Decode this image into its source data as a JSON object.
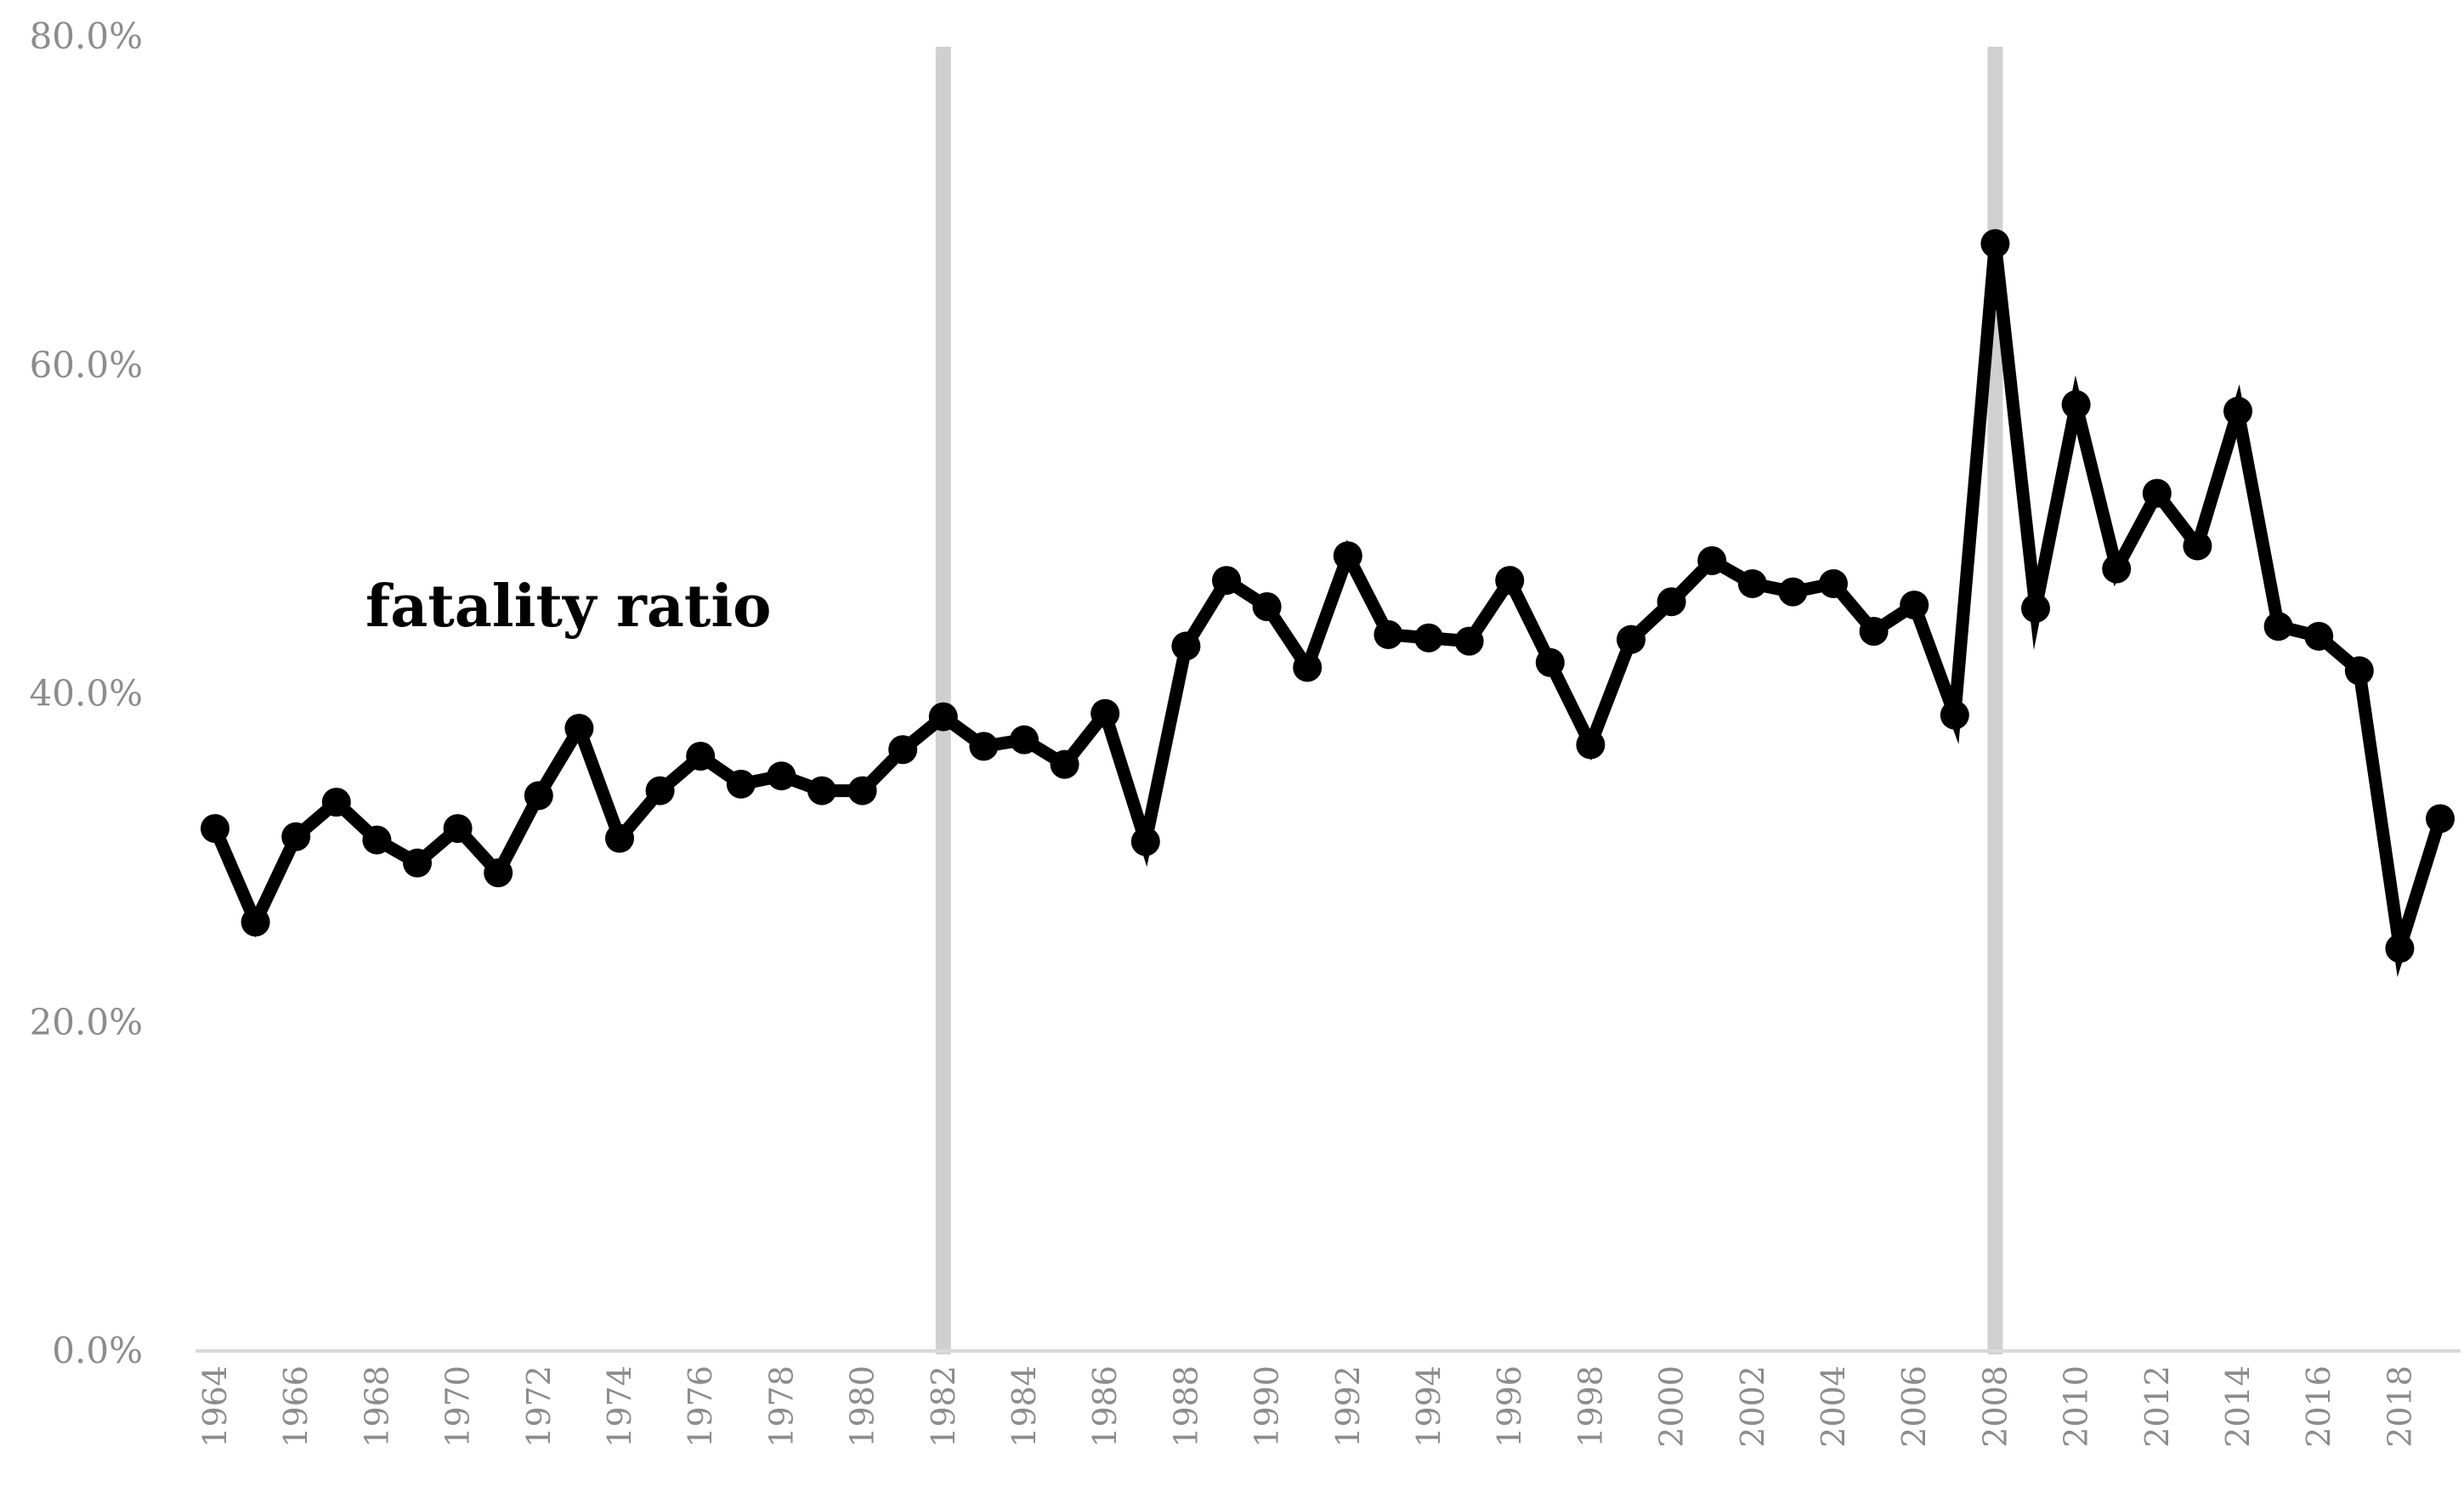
{
  "chart_data": {
    "type": "line",
    "title": "",
    "xlabel": "",
    "ylabel": "",
    "ylim": [
      0,
      80
    ],
    "ytick_values": [
      0,
      20,
      40,
      60,
      80
    ],
    "ytick_labels": [
      "0.0%",
      "20.0%",
      "40.0%",
      "60.0%",
      "80.0%"
    ],
    "xtick_labels": [
      "1964",
      "1966",
      "1968",
      "1970",
      "1972",
      "1974",
      "1976",
      "1978",
      "1980",
      "1982",
      "1984",
      "1986",
      "1988",
      "1990",
      "1992",
      "1994",
      "1996",
      "1998",
      "2000",
      "2002",
      "2004",
      "2006",
      "2008",
      "2010",
      "2012",
      "2014",
      "2016",
      "2018"
    ],
    "grid": false,
    "legend": "none",
    "annotation": "fatality ratio",
    "highlight_years": [
      1982,
      2008
    ],
    "highlight_color": "#d0d0d0",
    "line_color": "#000000",
    "axis_color": "#d9d9d9",
    "tick_label_color": "#8c8c8c",
    "series": [
      {
        "x": [
          1964,
          1965,
          1966,
          1967,
          1968,
          1969,
          1970,
          1971,
          1972,
          1973,
          1974,
          1975,
          1976,
          1977,
          1978,
          1979,
          1980,
          1981,
          1982,
          1983,
          1984,
          1985,
          1986,
          1987,
          1988,
          1989,
          1990,
          1991,
          1992,
          1993,
          1994,
          1995,
          1996,
          1997,
          1998,
          1999,
          2000,
          2001,
          2002,
          2003,
          2004,
          2005,
          2006,
          2007,
          2008,
          2009,
          2010,
          2011,
          2012,
          2013,
          2014,
          2015,
          2016,
          2017,
          2018,
          2019
        ],
        "values": [
          31.8,
          26.1,
          31.3,
          33.4,
          31.1,
          29.7,
          31.8,
          29.1,
          33.8,
          37.9,
          31.2,
          34.1,
          36.2,
          34.5,
          35.0,
          34.1,
          34.1,
          36.6,
          38.6,
          36.8,
          37.2,
          35.7,
          38.8,
          31.0,
          42.9,
          46.9,
          45.3,
          41.6,
          48.4,
          43.6,
          43.4,
          43.2,
          46.9,
          41.9,
          36.9,
          43.3,
          45.6,
          48.1,
          46.7,
          46.2,
          46.7,
          43.8,
          45.4,
          38.7,
          67.4,
          45.2,
          57.6,
          47.6,
          52.2,
          49.0,
          57.2,
          44.1,
          43.5,
          41.4,
          24.5,
          32.4
        ]
      }
    ]
  }
}
